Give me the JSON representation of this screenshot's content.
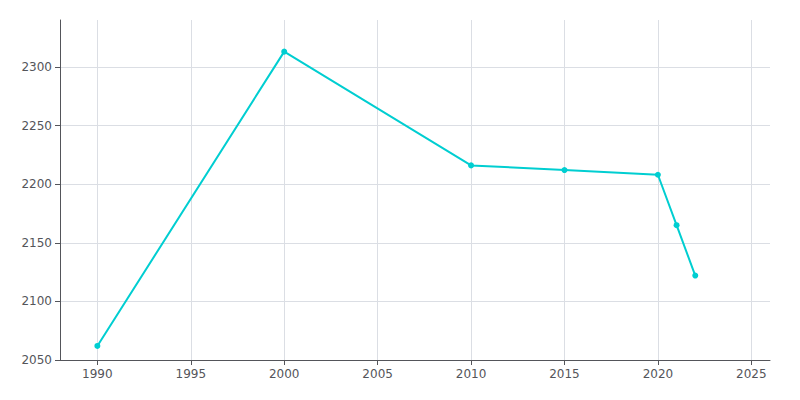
{
  "chart_data": {
    "type": "line",
    "x": [
      1990,
      2000,
      2010,
      2015,
      2020,
      2021,
      2022
    ],
    "values": [
      2062,
      2313,
      2216,
      2212,
      2208,
      2165,
      2122
    ],
    "color": "#00CED1",
    "marker": "circle",
    "xlim": [
      1988,
      2026
    ],
    "ylim": [
      2050,
      2340
    ],
    "xticks": [
      1990,
      1995,
      2000,
      2005,
      2010,
      2015,
      2020,
      2025
    ],
    "yticks": [
      2050,
      2100,
      2150,
      2200,
      2250,
      2300
    ],
    "grid": true
  }
}
